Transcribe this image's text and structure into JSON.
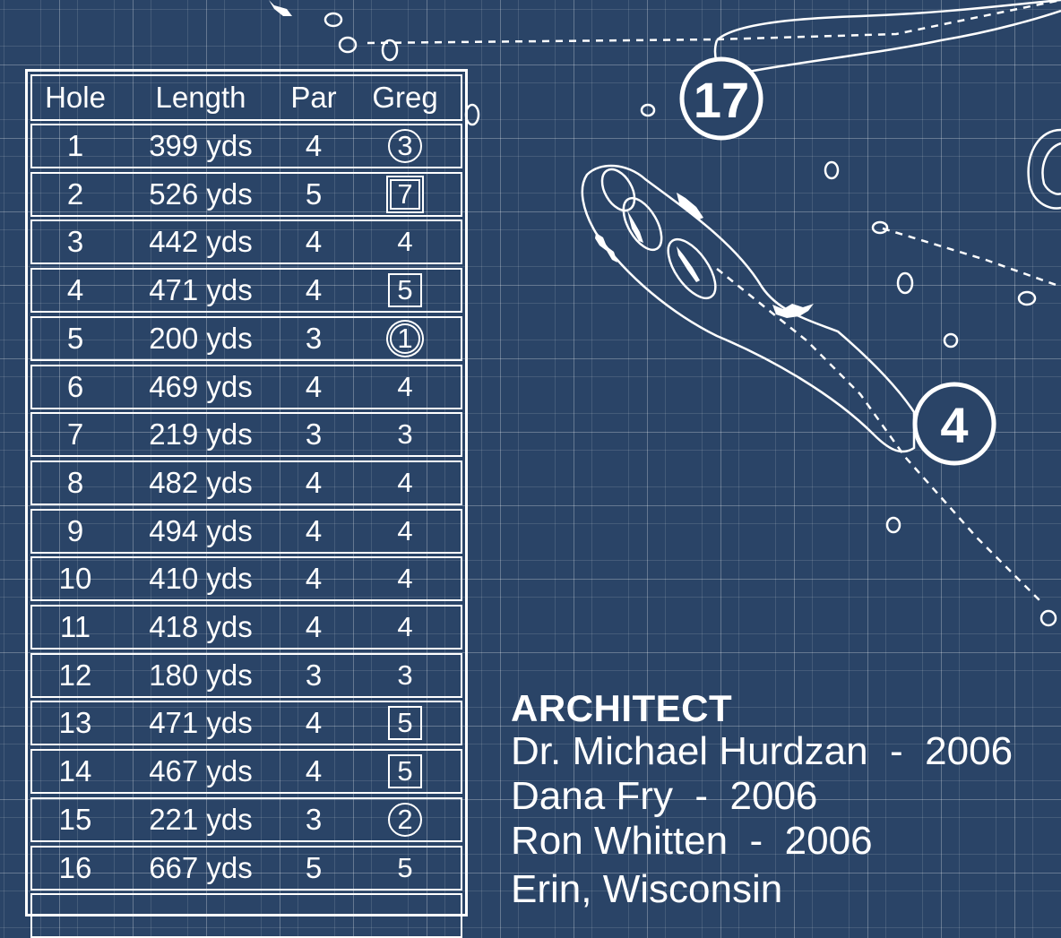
{
  "scorecard": {
    "headers": {
      "hole": "Hole",
      "length": "Length",
      "par": "Par",
      "player": "Greg"
    },
    "rows": [
      {
        "hole": "1",
        "length": "399 yds",
        "par": "4",
        "score": "3",
        "mark": "circle"
      },
      {
        "hole": "2",
        "length": "526 yds",
        "par": "5",
        "score": "7",
        "mark": "double-square"
      },
      {
        "hole": "3",
        "length": "442 yds",
        "par": "4",
        "score": "4",
        "mark": "none"
      },
      {
        "hole": "4",
        "length": "471 yds",
        "par": "4",
        "score": "5",
        "mark": "square"
      },
      {
        "hole": "5",
        "length": "200 yds",
        "par": "3",
        "score": "1",
        "mark": "double-circle"
      },
      {
        "hole": "6",
        "length": "469 yds",
        "par": "4",
        "score": "4",
        "mark": "none"
      },
      {
        "hole": "7",
        "length": "219 yds",
        "par": "3",
        "score": "3",
        "mark": "none"
      },
      {
        "hole": "8",
        "length": "482 yds",
        "par": "4",
        "score": "4",
        "mark": "none"
      },
      {
        "hole": "9",
        "length": "494 yds",
        "par": "4",
        "score": "4",
        "mark": "none"
      },
      {
        "hole": "10",
        "length": "410 yds",
        "par": "4",
        "score": "4",
        "mark": "none"
      },
      {
        "hole": "11",
        "length": "418 yds",
        "par": "4",
        "score": "4",
        "mark": "none"
      },
      {
        "hole": "12",
        "length": "180 yds",
        "par": "3",
        "score": "3",
        "mark": "none"
      },
      {
        "hole": "13",
        "length": "471 yds",
        "par": "4",
        "score": "5",
        "mark": "square"
      },
      {
        "hole": "14",
        "length": "467 yds",
        "par": "4",
        "score": "5",
        "mark": "square"
      },
      {
        "hole": "15",
        "length": "221 yds",
        "par": "3",
        "score": "2",
        "mark": "circle"
      },
      {
        "hole": "16",
        "length": "667 yds",
        "par": "5",
        "score": "5",
        "mark": "none"
      }
    ]
  },
  "map": {
    "hole_labels": [
      "17",
      "4"
    ]
  },
  "architect": {
    "title": "ARCHITECT",
    "lines": [
      "Dr. Michael Hurdzan  -  2006",
      "Dana Fry  -  2006",
      "Ron Whitten  -  2006"
    ],
    "location": "Erin, Wisconsin"
  },
  "colors": {
    "background": "#2a4467",
    "lines": "#ffffff"
  }
}
